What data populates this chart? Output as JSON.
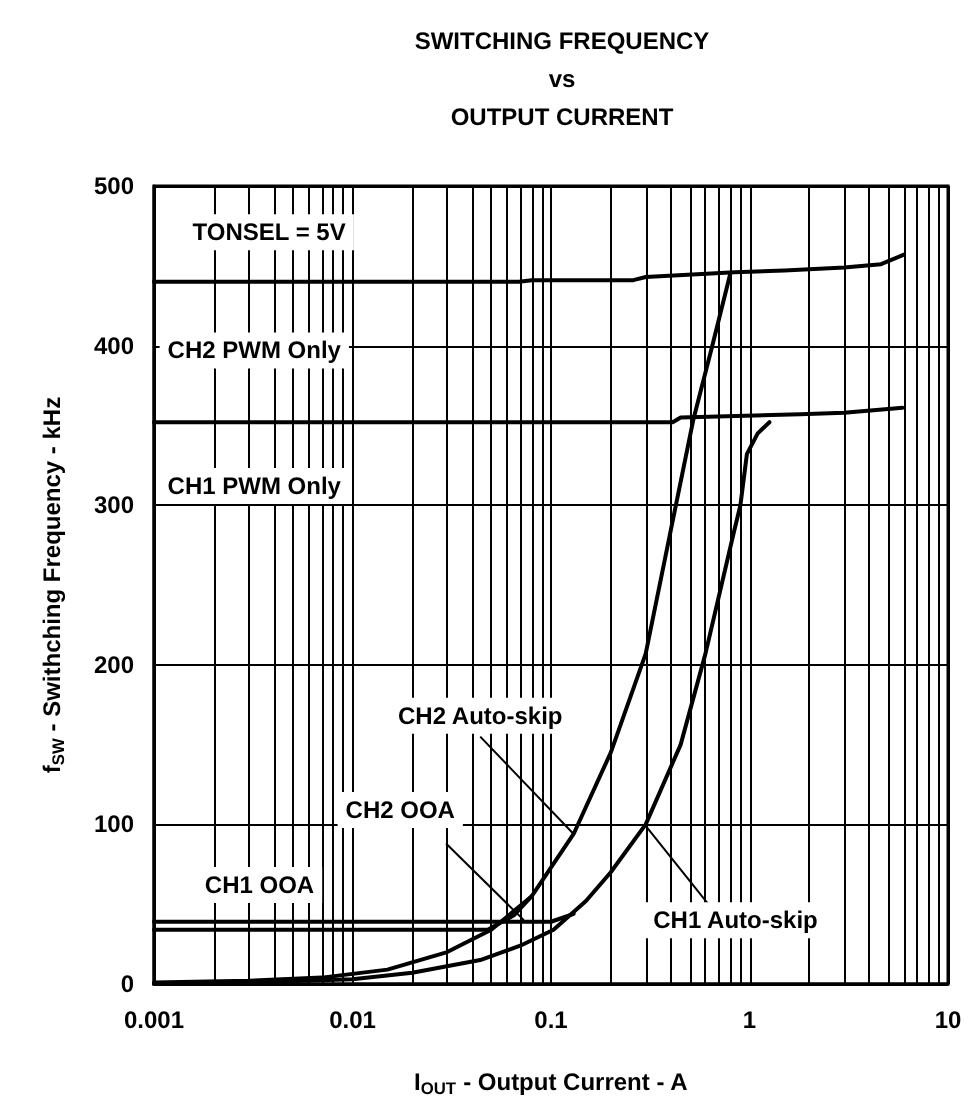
{
  "chart_data": {
    "type": "line",
    "title": "SWITCHING FREQUENCY\nvs\nOUTPUT CURRENT",
    "xlabel": "I$_{OUT}$ - Output Current - A",
    "ylabel": "f$_{SW}$ - Swithching Frequency - kHz",
    "log": "x",
    "xlim": [
      0.001,
      10
    ],
    "xticks": [
      0.001,
      0.01,
      0.1,
      1,
      10
    ],
    "ylim": [
      0,
      500
    ],
    "yticks": [
      0,
      100,
      200,
      300,
      400,
      500
    ],
    "grid": true,
    "marker": "none",
    "line_style": "solid",
    "annotations": [
      "TONSEL = 5V"
    ],
    "series": [
      {
        "name": "CH2 PWM Only",
        "color": "#000000",
        "x": [
          0.001,
          0.01,
          0.069,
          0.08,
          0.26,
          0.3,
          0.84,
          1.5,
          3,
          4.6,
          6
        ],
        "values": [
          440,
          440,
          440,
          441,
          441,
          443,
          446,
          447,
          449,
          451,
          457
        ]
      },
      {
        "name": "CH1 PWM Only",
        "color": "#000000",
        "x": [
          0.001,
          0.01,
          0.1,
          0.41,
          0.45,
          1.8,
          3,
          5.9
        ],
        "values": [
          352,
          352,
          352,
          352,
          355,
          357,
          358,
          361
        ]
      },
      {
        "name": "CH2 Auto-skip",
        "color": "#000000",
        "x": [
          0.001,
          0.003,
          0.007,
          0.015,
          0.03,
          0.05,
          0.08,
          0.13,
          0.2,
          0.3,
          0.41,
          0.52,
          0.65,
          0.8
        ],
        "values": [
          1,
          2,
          4,
          9,
          20,
          34,
          55,
          94,
          145,
          207,
          290,
          353,
          400,
          445
        ]
      },
      {
        "name": "CH1 Auto-skip",
        "color": "#000000",
        "x": [
          0.001,
          0.003,
          0.01,
          0.02,
          0.044,
          0.07,
          0.103,
          0.15,
          0.2,
          0.3,
          0.45,
          0.6,
          0.83,
          0.9,
          0.97,
          1.1,
          1.26
        ],
        "values": [
          0,
          1,
          3,
          7,
          15,
          24,
          34,
          52,
          70,
          100,
          150,
          207,
          282,
          300,
          332,
          345,
          352
        ]
      },
      {
        "name": "CH2 OOA",
        "color": "#000000",
        "x": [
          0.001,
          0.01,
          0.048,
          0.065,
          0.08
        ],
        "values": [
          34,
          34,
          34,
          43,
          55
        ]
      },
      {
        "name": "CH1 OOA",
        "color": "#000000",
        "x": [
          0.001,
          0.01,
          0.05,
          0.1,
          0.13
        ],
        "values": [
          39,
          39,
          39,
          39,
          44
        ]
      }
    ]
  }
}
